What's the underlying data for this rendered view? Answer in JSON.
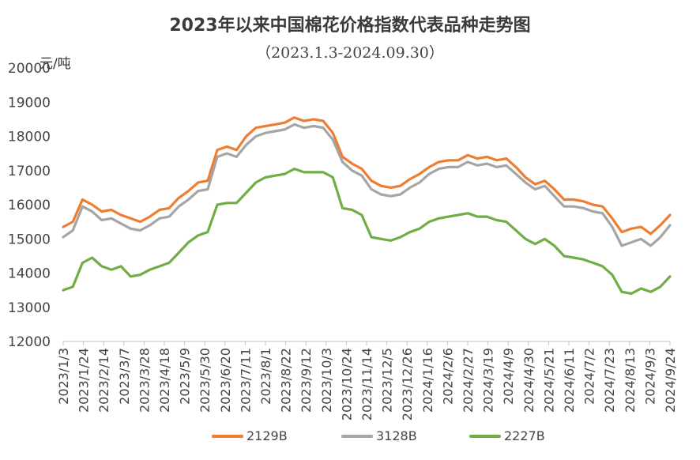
{
  "chart_data": {
    "type": "line",
    "title": "2023年以来中国棉花价格指数代表品种走势图",
    "subtitle": "（2023.1.3-2024.09.30）",
    "unit_label": "元/吨",
    "ylim": [
      12000,
      20000
    ],
    "yticks": [
      "12000",
      "13000",
      "14000",
      "15000",
      "16000",
      "17000",
      "18000",
      "19000",
      "20000"
    ],
    "x_ticks": [
      "2023/1/3",
      "2023/1/24",
      "2023/2/14",
      "2023/3/7",
      "2023/3/28",
      "2023/4/18",
      "2023/5/9",
      "2023/5/30",
      "2023/6/20",
      "2023/7/11",
      "2023/8/1",
      "2023/8/22",
      "2023/9/12",
      "2023/10/3",
      "2023/10/24",
      "2023/11/14",
      "2023/12/5",
      "2023/12/26",
      "2024/1/16",
      "2024/2/6",
      "2024/2/27",
      "2024/3/19",
      "2024/4/9",
      "2024/4/30",
      "2024/5/21",
      "2024/6/11",
      "2024/7/2",
      "2024/7/23",
      "2024/8/13",
      "2024/9/3",
      "2024/9/24"
    ],
    "grid": false,
    "legend_position": "bottom",
    "series": [
      {
        "name": "2129B",
        "color": "#ED7D31",
        "values": [
          15350,
          15500,
          16150,
          16000,
          15800,
          15850,
          15700,
          15600,
          15500,
          15650,
          15850,
          15900,
          16200,
          16400,
          16650,
          16700,
          17600,
          17700,
          17600,
          18000,
          18250,
          18300,
          18350,
          18400,
          18550,
          18450,
          18500,
          18450,
          18100,
          17400,
          17200,
          17050,
          16700,
          16550,
          16500,
          16550,
          16750,
          16900,
          17100,
          17250,
          17300,
          17300,
          17450,
          17350,
          17400,
          17300,
          17350,
          17100,
          16800,
          16600,
          16700,
          16450,
          16150,
          16150,
          16100,
          16000,
          15950,
          15600,
          15200,
          15300,
          15350,
          15150,
          15400,
          15700
        ]
      },
      {
        "name": "3128B",
        "color": "#A5A5A5",
        "values": [
          15050,
          15250,
          15950,
          15800,
          15550,
          15600,
          15450,
          15300,
          15250,
          15400,
          15600,
          15650,
          15950,
          16150,
          16400,
          16450,
          17400,
          17500,
          17400,
          17750,
          18000,
          18100,
          18150,
          18200,
          18350,
          18250,
          18300,
          18250,
          17900,
          17250,
          17000,
          16850,
          16450,
          16300,
          16250,
          16300,
          16500,
          16650,
          16900,
          17050,
          17100,
          17100,
          17250,
          17150,
          17200,
          17100,
          17150,
          16900,
          16650,
          16450,
          16550,
          16250,
          15950,
          15950,
          15900,
          15800,
          15750,
          15350,
          14800,
          14900,
          15000,
          14800,
          15050,
          15400
        ]
      },
      {
        "name": "2227B",
        "color": "#70AD47",
        "values": [
          13500,
          13600,
          14300,
          14450,
          14200,
          14100,
          14200,
          13900,
          13950,
          14100,
          14200,
          14300,
          14600,
          14900,
          15100,
          15200,
          16000,
          16050,
          16050,
          16350,
          16650,
          16800,
          16850,
          16900,
          17050,
          16950,
          16950,
          16950,
          16800,
          15900,
          15850,
          15700,
          15050,
          15000,
          14950,
          15050,
          15200,
          15300,
          15500,
          15600,
          15650,
          15700,
          15750,
          15650,
          15650,
          15550,
          15500,
          15250,
          15000,
          14850,
          15000,
          14800,
          14500,
          14450,
          14400,
          14300,
          14200,
          13950,
          13450,
          13400,
          13550,
          13450,
          13600,
          13900
        ]
      }
    ]
  }
}
